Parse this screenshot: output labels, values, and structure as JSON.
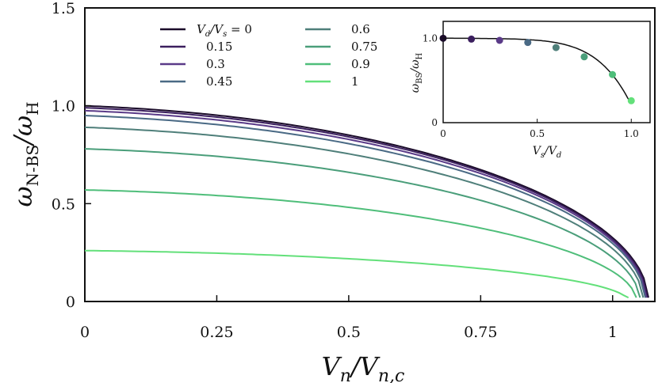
{
  "chart_data": [
    {
      "type": "line",
      "xlabel": "V_n/V_{n,c}",
      "ylabel": "ω_{N-BS}/ω_H",
      "xlim": [
        0,
        1.08
      ],
      "ylim": [
        0,
        1.5
      ],
      "x_ticks": [
        "0",
        "0.25",
        "0.5",
        "0.75",
        "1"
      ],
      "y_ticks": [
        "0",
        "0.5",
        "1.0",
        "1.5"
      ],
      "legend_title": "V_d/V_s = 0",
      "legend_placement": "top-center",
      "series": [
        {
          "name": "V_d/V_s = 0",
          "color": "#1b0c2a",
          "y0": 1.0,
          "x_end": 1.068
        },
        {
          "name": "0.15",
          "color": "#3b1f5e",
          "y0": 0.99,
          "x_end": 1.066
        },
        {
          "name": "0.3",
          "color": "#5a3a88",
          "y0": 0.975,
          "x_end": 1.064
        },
        {
          "name": "0.45",
          "color": "#4a6a85",
          "y0": 0.95,
          "x_end": 1.062
        },
        {
          "name": "0.6",
          "color": "#4f7f7a",
          "y0": 0.89,
          "x_end": 1.058
        },
        {
          "name": "0.75",
          "color": "#4a9e7a",
          "y0": 0.78,
          "x_end": 1.052
        },
        {
          "name": "0.9",
          "color": "#4fbe7a",
          "y0": 0.57,
          "x_end": 1.045
        },
        {
          "name": "1",
          "color": "#63e07a",
          "y0": 0.26,
          "x_end": 1.03
        }
      ]
    },
    {
      "type": "scatter",
      "inset": true,
      "xlabel": "V_s/V_d",
      "ylabel": "ω_BS/ω_H",
      "xlim": [
        0,
        1.1
      ],
      "ylim": [
        0,
        1.2
      ],
      "x_ticks": [
        "0",
        "0.5",
        "1.0"
      ],
      "y_ticks": [
        "0",
        "1.0"
      ],
      "x": [
        0,
        0.15,
        0.3,
        0.45,
        0.6,
        0.75,
        0.9,
        1.0
      ],
      "y": [
        1.0,
        0.99,
        0.975,
        0.95,
        0.89,
        0.78,
        0.57,
        0.26
      ],
      "colors": [
        "#1b0c2a",
        "#3b1f5e",
        "#5a3a88",
        "#4a6a85",
        "#4f7f7a",
        "#4a9e7a",
        "#4fbe7a",
        "#63e07a"
      ],
      "curve_color": "#111111"
    }
  ]
}
